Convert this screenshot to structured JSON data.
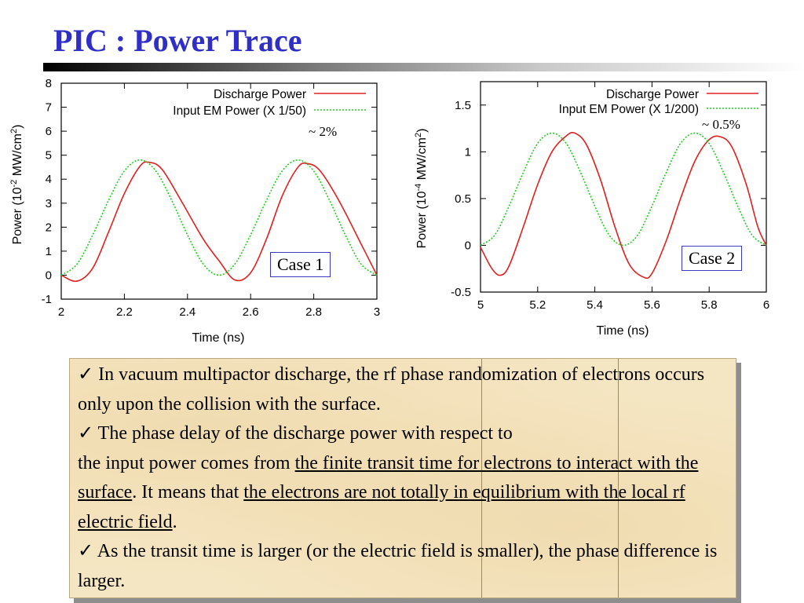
{
  "slide": {
    "title": "PIC : Power Trace",
    "bullets": {
      "b1": {
        "check": "✓",
        "text": " In vacuum multipactor discharge, the rf phase randomization of electrons occurs only upon the collision with the surface."
      },
      "b2": {
        "check": "✓",
        "line1": " The phase delay of the discharge power with respect to",
        "pre": "the input power comes from ",
        "u1": "the finite transit time for electrons to interact with the surface",
        "mid": ". It means that ",
        "u2": "the electrons are not totally in equilibrium with the local rf electric field",
        "end": "."
      },
      "b3": {
        "check": "✓",
        "text": " As the transit time is larger (or the electric field is smaller), the phase difference is larger."
      }
    }
  },
  "chart_data": [
    {
      "type": "line",
      "case_label": "Case 1",
      "annotation": "~ 2%",
      "xlabel": "Time (ns)",
      "ylabel": "Power (10-2 MW/cm2)",
      "ylabel_parts": {
        "pre": "Power (10",
        "exp1": "-2",
        "mid": " MW/cm",
        "exp2": "2",
        "post": ")"
      },
      "xlim": [
        2,
        3
      ],
      "ylim": [
        -1,
        8
      ],
      "xticks": [
        "2",
        "2.2",
        "2.4",
        "2.6",
        "2.8",
        "3"
      ],
      "yticks": [
        "-1",
        "0",
        "1",
        "2",
        "3",
        "4",
        "5",
        "6",
        "7",
        "8"
      ],
      "legend_position": "top-right",
      "series": [
        {
          "name": "Discharge Power",
          "color": "#e02020",
          "style": "solid",
          "x": [
            2.0,
            2.05,
            2.1,
            2.15,
            2.2,
            2.25,
            2.28,
            2.32,
            2.38,
            2.45,
            2.5,
            2.55,
            2.6,
            2.65,
            2.7,
            2.75,
            2.78,
            2.82,
            2.88,
            2.95,
            3.0
          ],
          "y": [
            0.0,
            -0.25,
            0.3,
            1.8,
            3.4,
            4.55,
            4.7,
            4.4,
            3.1,
            1.5,
            0.6,
            -0.2,
            0.1,
            1.5,
            3.3,
            4.5,
            4.65,
            4.35,
            3.1,
            1.3,
            0.0
          ]
        },
        {
          "name": "Input EM Power (X 1/50)",
          "color": "#22cc22",
          "style": "dotted",
          "x": [
            2.0,
            2.05,
            2.1,
            2.15,
            2.2,
            2.25,
            2.3,
            2.35,
            2.4,
            2.45,
            2.5,
            2.55,
            2.6,
            2.65,
            2.7,
            2.75,
            2.8,
            2.85,
            2.9,
            2.95,
            3.0
          ],
          "y": [
            0.0,
            0.46,
            1.68,
            3.12,
            4.34,
            4.8,
            4.34,
            3.12,
            1.68,
            0.46,
            0.0,
            0.46,
            1.68,
            3.12,
            4.34,
            4.8,
            4.34,
            3.12,
            1.68,
            0.46,
            0.0
          ]
        }
      ]
    },
    {
      "type": "line",
      "case_label": "Case 2",
      "annotation": "~ 0.5%",
      "xlabel": "Time (ns)",
      "ylabel": "Power (10-4 MW/cm2)",
      "ylabel_parts": {
        "pre": "Power (10",
        "exp1": "-4",
        "mid": " MW/cm",
        "exp2": "2",
        "post": ")"
      },
      "xlim": [
        5,
        6
      ],
      "ylim": [
        -0.5,
        1.75
      ],
      "xticks": [
        "5",
        "5.2",
        "5.4",
        "5.6",
        "5.8",
        "6"
      ],
      "xtick_values": [
        5,
        5.2,
        5.4,
        5.6,
        5.8,
        6
      ],
      "yticks": [
        "-0.5",
        "0",
        "0.5",
        "1",
        "1.5"
      ],
      "ytick_values": [
        -0.5,
        0,
        0.5,
        1,
        1.5
      ],
      "legend_position": "top-right",
      "series": [
        {
          "name": "Discharge Power",
          "color": "#e02020",
          "style": "solid",
          "x": [
            5.0,
            5.04,
            5.07,
            5.1,
            5.15,
            5.2,
            5.25,
            5.3,
            5.33,
            5.37,
            5.42,
            5.47,
            5.52,
            5.57,
            5.6,
            5.65,
            5.7,
            5.75,
            5.8,
            5.84,
            5.88,
            5.93,
            5.97,
            6.0
          ],
          "y": [
            -0.02,
            -0.25,
            -0.32,
            -0.22,
            0.2,
            0.65,
            1.0,
            1.17,
            1.2,
            1.08,
            0.7,
            0.2,
            -0.2,
            -0.34,
            -0.3,
            0.05,
            0.5,
            0.9,
            1.13,
            1.16,
            1.05,
            0.65,
            0.2,
            0.0
          ]
        },
        {
          "name": "Input EM Power (X 1/200)",
          "color": "#22cc22",
          "style": "dotted",
          "x": [
            5.0,
            5.05,
            5.1,
            5.15,
            5.2,
            5.25,
            5.3,
            5.35,
            5.4,
            5.45,
            5.5,
            5.55,
            5.6,
            5.65,
            5.7,
            5.75,
            5.8,
            5.85,
            5.9,
            5.95,
            6.0
          ],
          "y": [
            0.0,
            0.11,
            0.42,
            0.78,
            1.09,
            1.2,
            1.09,
            0.78,
            0.42,
            0.11,
            0.0,
            0.11,
            0.42,
            0.78,
            1.09,
            1.2,
            1.09,
            0.78,
            0.42,
            0.11,
            0.0
          ]
        }
      ]
    }
  ]
}
